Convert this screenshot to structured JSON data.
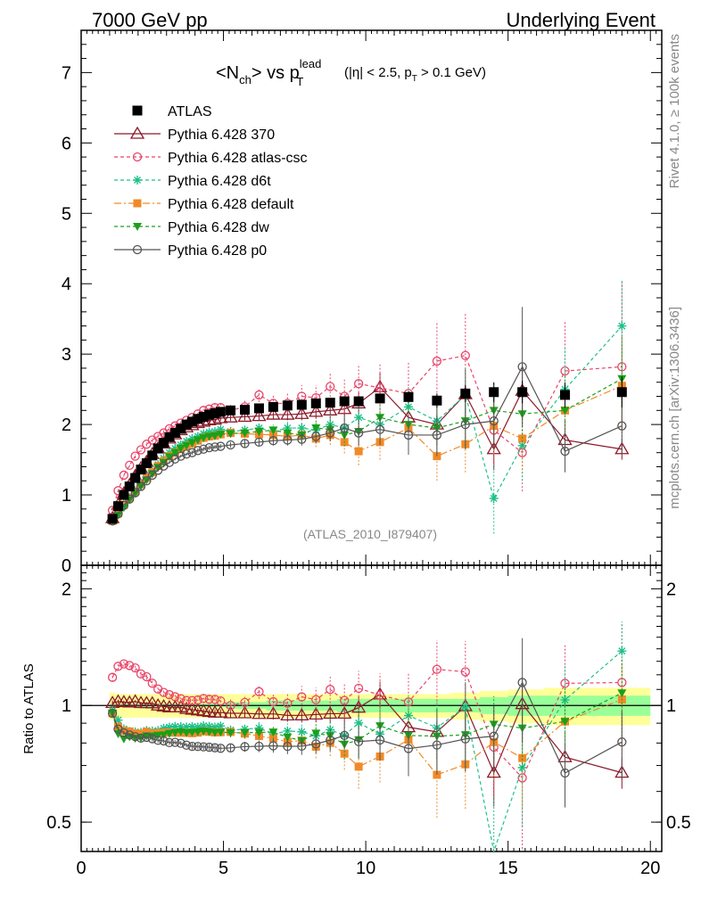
{
  "header": {
    "left": "7000 GeV pp",
    "right": "Underlying Event",
    "side_top": "Rivet 4.1.0, ≥ 100k events",
    "side_bottom": "mcplots.cern.ch [arXiv:1306.3436]",
    "analysis_id": "(ATLAS_2010_I879407)"
  },
  "title": {
    "main": "<N",
    "sub_ch": "ch",
    "vs": "> vs p",
    "sub_T": "T",
    "sup_lead": "lead",
    "cuts_a": "(|η| < 2.5, p",
    "cuts_sub": "T",
    "cuts_b": " > 0.1 GeV)"
  },
  "chart_data": {
    "type": "line",
    "title": "<Nch> vs pT lead (|η| < 2.5, pT > 0.1 GeV)",
    "xlabel": "",
    "ylabel": "",
    "ratio_ylabel": "Ratio to ATLAS",
    "xlim": [
      0,
      20.4
    ],
    "ylim": [
      0,
      7.6
    ],
    "ratio_ylim": [
      0.42,
      2.3
    ],
    "x_ticks": [
      0,
      5,
      10,
      15,
      20
    ],
    "y_ticks": [
      0,
      1,
      2,
      3,
      4,
      5,
      6,
      7
    ],
    "ratio_ticks": [
      "0.5",
      "1",
      "2"
    ],
    "legend_position": "top-left",
    "x": [
      1.1,
      1.3,
      1.5,
      1.7,
      1.9,
      2.1,
      2.3,
      2.5,
      2.7,
      2.9,
      3.1,
      3.3,
      3.5,
      3.7,
      3.9,
      4.1,
      4.3,
      4.5,
      4.7,
      4.9,
      5.25,
      5.75,
      6.25,
      6.75,
      7.25,
      7.75,
      8.25,
      8.75,
      9.25,
      9.75,
      10.5,
      11.5,
      12.5,
      13.5,
      14.5,
      15.5,
      17,
      19
    ],
    "atlas": [
      0.66,
      0.84,
      1.0,
      1.12,
      1.24,
      1.36,
      1.45,
      1.56,
      1.66,
      1.74,
      1.82,
      1.88,
      1.94,
      2.0,
      2.04,
      2.08,
      2.11,
      2.14,
      2.16,
      2.18,
      2.2,
      2.21,
      2.23,
      2.25,
      2.27,
      2.28,
      2.3,
      2.31,
      2.33,
      2.33,
      2.37,
      2.39,
      2.34,
      2.44,
      2.46,
      2.46,
      2.42,
      2.46
    ],
    "atlas_err": [
      0.01,
      0.01,
      0.01,
      0.01,
      0.01,
      0.01,
      0.01,
      0.01,
      0.01,
      0.01,
      0.01,
      0.01,
      0.01,
      0.01,
      0.01,
      0.01,
      0.02,
      0.02,
      0.02,
      0.02,
      0.02,
      0.02,
      0.02,
      0.03,
      0.03,
      0.03,
      0.04,
      0.04,
      0.05,
      0.05,
      0.06,
      0.08,
      0.1,
      0.12,
      0.14,
      0.16,
      0.18,
      0.22
    ],
    "band_rel": [
      0.08,
      0.07,
      0.07,
      0.07,
      0.07,
      0.07,
      0.07,
      0.07,
      0.07,
      0.07,
      0.07,
      0.07,
      0.07,
      0.07,
      0.07,
      0.07,
      0.07,
      0.07,
      0.07,
      0.07,
      0.07,
      0.07,
      0.07,
      0.07,
      0.07,
      0.07,
      0.07,
      0.07,
      0.07,
      0.07,
      0.07,
      0.07,
      0.07,
      0.08,
      0.09,
      0.1,
      0.11,
      0.11
    ],
    "band_stat_rel": [
      0.01,
      0.01,
      0.01,
      0.01,
      0.01,
      0.01,
      0.01,
      0.01,
      0.01,
      0.01,
      0.01,
      0.01,
      0.01,
      0.01,
      0.01,
      0.01,
      0.01,
      0.01,
      0.01,
      0.01,
      0.02,
      0.02,
      0.02,
      0.03,
      0.03,
      0.03,
      0.03,
      0.03,
      0.04,
      0.04,
      0.04,
      0.04,
      0.04,
      0.04,
      0.05,
      0.06,
      0.06,
      0.06
    ],
    "series": [
      {
        "name": "Pythia 6.428 370",
        "color": "#8b1a2a",
        "dash": "",
        "marker": "triangle-open",
        "values": [
          0.67,
          0.86,
          1.02,
          1.14,
          1.27,
          1.38,
          1.47,
          1.58,
          1.66,
          1.73,
          1.8,
          1.86,
          1.92,
          1.96,
          1.99,
          2.02,
          2.04,
          2.06,
          2.07,
          2.09,
          2.1,
          2.11,
          2.12,
          2.14,
          2.14,
          2.15,
          2.18,
          2.2,
          2.22,
          2.3,
          2.53,
          2.1,
          2.0,
          2.43,
          1.65,
          2.48,
          1.78,
          1.65
        ],
        "err": [
          0.01,
          0.01,
          0.01,
          0.01,
          0.01,
          0.01,
          0.01,
          0.02,
          0.02,
          0.02,
          0.02,
          0.02,
          0.02,
          0.03,
          0.03,
          0.03,
          0.03,
          0.03,
          0.04,
          0.04,
          0.05,
          0.05,
          0.06,
          0.07,
          0.08,
          0.09,
          0.1,
          0.12,
          0.14,
          0.16,
          0.2,
          0.25,
          0.3,
          0.35,
          0.3,
          0.4,
          0.3,
          0.15
        ]
      },
      {
        "name": "Pythia 6.428 atlas-csc",
        "color": "#e8456a",
        "dash": "4,3",
        "marker": "circle-open",
        "values": [
          0.78,
          1.06,
          1.28,
          1.42,
          1.55,
          1.64,
          1.72,
          1.78,
          1.83,
          1.88,
          1.94,
          1.98,
          2.02,
          2.06,
          2.1,
          2.15,
          2.2,
          2.22,
          2.24,
          2.24,
          2.2,
          2.25,
          2.42,
          2.3,
          2.3,
          2.4,
          2.38,
          2.54,
          2.4,
          2.58,
          2.52,
          2.44,
          2.9,
          2.98,
          1.92,
          1.6,
          2.76,
          2.82
        ],
        "err": [
          0.02,
          0.02,
          0.02,
          0.02,
          0.03,
          0.03,
          0.03,
          0.03,
          0.04,
          0.04,
          0.04,
          0.04,
          0.05,
          0.05,
          0.05,
          0.06,
          0.06,
          0.06,
          0.07,
          0.07,
          0.08,
          0.09,
          0.1,
          0.12,
          0.14,
          0.16,
          0.18,
          0.2,
          0.24,
          0.28,
          0.35,
          0.45,
          0.55,
          0.6,
          0.5,
          0.55,
          0.7,
          1.2
        ]
      },
      {
        "name": "Pythia 6.428 d6t",
        "color": "#1fc08a",
        "dash": "4,3",
        "marker": "star",
        "values": [
          0.64,
          0.77,
          0.87,
          0.96,
          1.06,
          1.16,
          1.25,
          1.34,
          1.43,
          1.52,
          1.6,
          1.66,
          1.71,
          1.76,
          1.8,
          1.83,
          1.87,
          1.89,
          1.9,
          1.93,
          1.9,
          1.92,
          1.95,
          1.9,
          1.95,
          1.95,
          1.92,
          2.0,
          1.95,
          2.1,
          2.0,
          2.25,
          2.05,
          2.42,
          0.95,
          1.7,
          2.5,
          3.4
        ],
        "err": [
          0.01,
          0.01,
          0.01,
          0.01,
          0.01,
          0.01,
          0.02,
          0.02,
          0.02,
          0.02,
          0.02,
          0.03,
          0.03,
          0.03,
          0.03,
          0.03,
          0.04,
          0.04,
          0.04,
          0.04,
          0.05,
          0.06,
          0.07,
          0.08,
          0.09,
          0.1,
          0.12,
          0.14,
          0.16,
          0.2,
          0.25,
          0.3,
          0.35,
          0.4,
          0.5,
          0.5,
          0.6,
          0.65
        ]
      },
      {
        "name": "Pythia 6.428 default",
        "color": "#f08a28",
        "dash": "8,3,2,3",
        "marker": "square",
        "values": [
          0.63,
          0.74,
          0.86,
          0.96,
          1.05,
          1.15,
          1.24,
          1.32,
          1.41,
          1.48,
          1.55,
          1.6,
          1.65,
          1.7,
          1.73,
          1.77,
          1.81,
          1.83,
          1.84,
          1.86,
          1.88,
          1.87,
          1.86,
          1.85,
          1.83,
          1.85,
          1.8,
          1.85,
          1.75,
          1.62,
          1.75,
          1.95,
          1.55,
          1.72,
          1.98,
          1.8,
          2.2,
          2.55
        ],
        "err": [
          0.01,
          0.01,
          0.01,
          0.01,
          0.01,
          0.01,
          0.02,
          0.02,
          0.02,
          0.02,
          0.02,
          0.03,
          0.03,
          0.03,
          0.03,
          0.03,
          0.04,
          0.04,
          0.04,
          0.04,
          0.05,
          0.06,
          0.07,
          0.08,
          0.09,
          0.1,
          0.12,
          0.14,
          0.16,
          0.2,
          0.25,
          0.3,
          0.35,
          0.4,
          0.4,
          0.45,
          0.5,
          0.6
        ]
      },
      {
        "name": "Pythia 6.428 dw",
        "color": "#1aa01a",
        "dash": "4,3",
        "marker": "triangle-down",
        "values": [
          0.63,
          0.71,
          0.82,
          0.93,
          1.02,
          1.12,
          1.21,
          1.3,
          1.39,
          1.46,
          1.54,
          1.6,
          1.66,
          1.7,
          1.74,
          1.78,
          1.81,
          1.83,
          1.84,
          1.86,
          1.87,
          1.88,
          1.9,
          1.92,
          1.88,
          1.85,
          1.95,
          1.93,
          1.85,
          1.9,
          2.1,
          2.0,
          1.95,
          2.05,
          2.2,
          2.15,
          2.2,
          2.65
        ],
        "err": [
          0.01,
          0.01,
          0.01,
          0.01,
          0.01,
          0.01,
          0.02,
          0.02,
          0.02,
          0.02,
          0.02,
          0.03,
          0.03,
          0.03,
          0.03,
          0.03,
          0.04,
          0.04,
          0.04,
          0.04,
          0.05,
          0.06,
          0.07,
          0.08,
          0.09,
          0.1,
          0.12,
          0.14,
          0.16,
          0.2,
          0.25,
          0.3,
          0.35,
          0.4,
          0.4,
          0.45,
          0.5,
          0.6
        ]
      },
      {
        "name": "Pythia 6.428 p0",
        "color": "#555555",
        "dash": "",
        "marker": "circle-open",
        "values": [
          0.63,
          0.73,
          0.85,
          0.94,
          1.03,
          1.12,
          1.2,
          1.28,
          1.35,
          1.41,
          1.46,
          1.51,
          1.55,
          1.58,
          1.6,
          1.63,
          1.65,
          1.67,
          1.68,
          1.69,
          1.71,
          1.73,
          1.75,
          1.77,
          1.78,
          1.79,
          1.83,
          1.88,
          1.95,
          1.88,
          1.93,
          1.85,
          1.85,
          2.0,
          2.05,
          2.82,
          1.62,
          1.98
        ],
        "err": [
          0.01,
          0.01,
          0.01,
          0.01,
          0.01,
          0.01,
          0.01,
          0.02,
          0.02,
          0.02,
          0.02,
          0.02,
          0.02,
          0.02,
          0.03,
          0.03,
          0.03,
          0.03,
          0.03,
          0.03,
          0.04,
          0.05,
          0.06,
          0.07,
          0.08,
          0.09,
          0.1,
          0.12,
          0.14,
          0.18,
          0.22,
          0.28,
          0.3,
          0.35,
          0.4,
          0.85,
          0.3,
          0.4
        ]
      }
    ]
  }
}
